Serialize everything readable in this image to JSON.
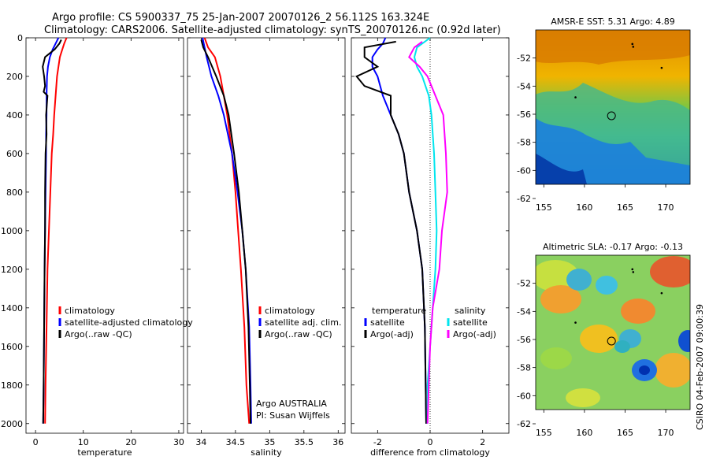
{
  "header": {
    "line1": "Argo profile: CS 5900337_75 25-Jan-2007 20070126_2 56.112S 163.324E",
    "line2": "Climatology: CARS2006. Satellite-adjusted climatology: synTS_20070126.nc (0.92d later)"
  },
  "footer": {
    "credit": "CSIRO 04-Feb-2007 09:00:39"
  },
  "colors": {
    "climatology": "#ff0000",
    "satellite": "#0000ff",
    "argo": "#000000",
    "salinity_diff": "#ff00ff",
    "salinity_sat_diff": "#00e5ee"
  },
  "chart_data": [
    {
      "type": "line",
      "id": "temperature",
      "xlabel": "temperature",
      "ylabel": "",
      "xlim": [
        -2,
        31
      ],
      "ylim": [
        2050,
        0
      ],
      "xticks": [
        0,
        10,
        20,
        30
      ],
      "yticks": [
        0,
        200,
        400,
        600,
        800,
        1000,
        1200,
        1400,
        1600,
        1800,
        2000
      ],
      "legend": [
        "climatology",
        "satellite-adjusted climatology",
        "Argo(..raw -QC)"
      ],
      "annotations": [],
      "series": [
        {
          "name": "climatology",
          "color": "#ff0000",
          "x": [
            6.5,
            6.0,
            5.6,
            5.1,
            4.8,
            4.5,
            4.2,
            3.9,
            3.7,
            3.4,
            3.1,
            2.8,
            2.5,
            2.3,
            2.1,
            2.0
          ],
          "y": [
            0,
            30,
            60,
            100,
            150,
            200,
            300,
            400,
            500,
            600,
            800,
            1000,
            1200,
            1500,
            1800,
            2000
          ]
        },
        {
          "name": "satellite-adjusted climatology",
          "color": "#0000ff",
          "x": [
            4.8,
            4.2,
            3.6,
            3.0,
            2.6,
            2.4,
            2.3,
            2.3,
            2.2,
            2.2,
            2.1,
            2.0,
            1.9,
            1.8,
            1.7,
            1.6
          ],
          "y": [
            0,
            30,
            60,
            100,
            150,
            200,
            300,
            400,
            500,
            600,
            800,
            1000,
            1200,
            1500,
            1800,
            2000
          ]
        },
        {
          "name": "Argo(..raw -QC)",
          "color": "#000000",
          "x": [
            5.4,
            5.0,
            4.0,
            2.0,
            1.5,
            1.8,
            2.0,
            1.7,
            2.5,
            2.2,
            2.3,
            2.1,
            2.0,
            2.0,
            1.9,
            1.8,
            1.7,
            1.6
          ],
          "y": [
            10,
            30,
            60,
            100,
            150,
            200,
            250,
            280,
            300,
            400,
            500,
            600,
            800,
            1000,
            1200,
            1500,
            1800,
            2000
          ]
        }
      ]
    },
    {
      "type": "line",
      "id": "salinity",
      "xlabel": "salinity",
      "ylabel": "",
      "xlim": [
        33.8,
        36.1
      ],
      "ylim": [
        2050,
        0
      ],
      "xticks": [
        34,
        34.5,
        35,
        35.5,
        36
      ],
      "yticks": [
        0,
        200,
        400,
        600,
        800,
        1000,
        1200,
        1400,
        1600,
        1800,
        2000
      ],
      "legend": [
        "climatology",
        "satellite adj. clim.",
        "Argo(..raw -QC)"
      ],
      "annotations": [
        "Argo AUSTRALIA",
        "PI: Susan Wijffels"
      ],
      "series": [
        {
          "name": "climatology",
          "color": "#ff0000",
          "x": [
            34.05,
            34.1,
            34.2,
            34.28,
            34.33,
            34.38,
            34.45,
            34.5,
            34.54,
            34.58,
            34.63,
            34.66,
            34.7
          ],
          "y": [
            0,
            50,
            100,
            200,
            300,
            400,
            600,
            800,
            1000,
            1200,
            1500,
            1800,
            2000
          ]
        },
        {
          "name": "satellite adj. clim.",
          "color": "#0000ff",
          "x": [
            34.02,
            34.05,
            34.08,
            34.15,
            34.25,
            34.33,
            34.45,
            34.53,
            34.6,
            34.65,
            34.7,
            34.72,
            34.73
          ],
          "y": [
            0,
            50,
            100,
            200,
            300,
            400,
            600,
            800,
            1000,
            1200,
            1500,
            1800,
            2000
          ]
        },
        {
          "name": "Argo(..raw -QC)",
          "color": "#000000",
          "x": [
            34.0,
            34.03,
            34.1,
            34.22,
            34.33,
            34.4,
            34.48,
            34.55,
            34.6,
            34.65,
            34.69,
            34.71,
            34.72
          ],
          "y": [
            10,
            50,
            100,
            200,
            300,
            400,
            600,
            800,
            1000,
            1200,
            1500,
            1800,
            2000
          ]
        }
      ]
    },
    {
      "type": "line",
      "id": "difference",
      "xlabel": "difference from climatology",
      "ylabel": "",
      "xlim": [
        -3,
        3
      ],
      "ylim": [
        2050,
        0
      ],
      "xticks": [
        -2,
        0,
        2
      ],
      "yticks": [
        0,
        200,
        400,
        600,
        800,
        1000,
        1200,
        1400,
        1600,
        1800,
        2000
      ],
      "legend": [
        "temperature",
        "satellite",
        "Argo(-adj)",
        "salinity",
        "satellite",
        "Argo(-adj)"
      ],
      "annotations": [],
      "series": [
        {
          "name": "temperature satellite",
          "color": "#0000ff",
          "x": [
            -1.7,
            -1.8,
            -2.0,
            -2.2,
            -2.2,
            -2.0,
            -1.8,
            -1.5,
            -1.2,
            -1.0,
            -0.8,
            -0.5,
            -0.3,
            -0.2,
            -0.15
          ],
          "y": [
            0,
            30,
            60,
            100,
            150,
            200,
            300,
            400,
            500,
            600,
            800,
            1000,
            1200,
            1500,
            2000
          ]
        },
        {
          "name": "temperature Argo(-adj)",
          "color": "#000000",
          "x": [
            -1.3,
            -2.5,
            -2.5,
            -2.0,
            -2.8,
            -2.5,
            -1.5,
            -1.5,
            -1.2,
            -1.0,
            -0.8,
            -0.5,
            -0.3,
            -0.2,
            -0.15
          ],
          "y": [
            20,
            50,
            100,
            150,
            200,
            250,
            300,
            400,
            500,
            600,
            800,
            1000,
            1200,
            1500,
            2000
          ]
        },
        {
          "name": "salinity satellite",
          "color": "#00e5ee",
          "x": [
            0.0,
            -0.5,
            -0.6,
            -0.5,
            -0.3,
            -0.05,
            0.05,
            0.15,
            0.2,
            0.25,
            0.2,
            0.1,
            0.0,
            -0.1,
            -0.1
          ],
          "y": [
            0,
            50,
            100,
            150,
            200,
            300,
            400,
            600,
            800,
            1000,
            1200,
            1400,
            1600,
            1800,
            2000
          ]
        },
        {
          "name": "salinity Argo(-adj)",
          "color": "#ff00ff",
          "x": [
            -0.3,
            -0.6,
            -0.8,
            -0.4,
            -0.1,
            0.2,
            0.5,
            0.6,
            0.65,
            0.45,
            0.35,
            0.1,
            0.0,
            -0.05,
            -0.1
          ],
          "y": [
            20,
            50,
            100,
            150,
            200,
            300,
            400,
            600,
            800,
            1000,
            1200,
            1400,
            1600,
            1800,
            2000
          ]
        }
      ]
    },
    {
      "type": "heatmap",
      "id": "sst_map",
      "title": "AMSR-E SST: 5.31 Argo: 4.89",
      "xlim": [
        154,
        173
      ],
      "ylim": [
        -62,
        -50
      ],
      "xticks": [
        155,
        160,
        165,
        170
      ],
      "yticks": [
        -52,
        -54,
        -56,
        -58,
        -60,
        -62
      ],
      "marker": {
        "lon": 163.324,
        "lat": -56.112
      }
    },
    {
      "type": "heatmap",
      "id": "sla_map",
      "title": "Altimetric SLA: -0.17 Argo: -0.13",
      "xlim": [
        154,
        173
      ],
      "ylim": [
        -62,
        -50
      ],
      "xticks": [
        155,
        160,
        165,
        170
      ],
      "yticks": [
        -52,
        -54,
        -56,
        -58,
        -60,
        -62
      ],
      "marker": {
        "lon": 163.324,
        "lat": -56.112
      }
    }
  ]
}
